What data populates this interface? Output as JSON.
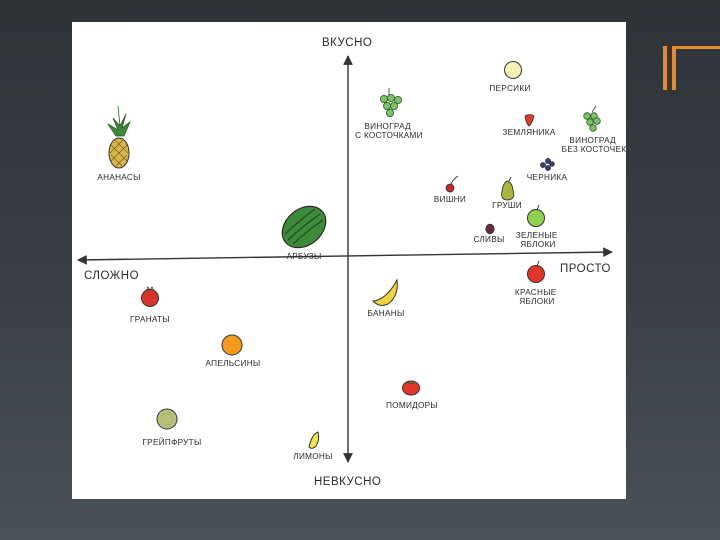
{
  "axis": {
    "top": "ВКУСНО",
    "bottom": "НЕВКУСНО",
    "left": "СЛОЖНО",
    "right": "ПРОСТО"
  },
  "items": [
    {
      "key": "peaches",
      "lines": [
        "ПЕРСИКИ"
      ]
    },
    {
      "key": "grapes-seed",
      "lines": [
        "ВИНОГРАД",
        "С КОСТОЧКАМИ"
      ]
    },
    {
      "key": "strawberry",
      "lines": [
        "ЗЕМЛЯНИКА"
      ]
    },
    {
      "key": "grapes-seedless",
      "lines": [
        "ВИНОГРАД",
        "БЕЗ КОСТОЧЕК"
      ]
    },
    {
      "key": "pineapple",
      "lines": [
        "АНАНАСЫ"
      ]
    },
    {
      "key": "blueberry",
      "lines": [
        "ЧЕРНИКА"
      ]
    },
    {
      "key": "cherries",
      "lines": [
        "ВИШНИ"
      ]
    },
    {
      "key": "pears",
      "lines": [
        "ГРУШИ"
      ]
    },
    {
      "key": "green-apples",
      "lines": [
        "ЗЕЛЕНЫЕ",
        "ЯБЛОКИ"
      ]
    },
    {
      "key": "plums",
      "lines": [
        "СЛИВЫ"
      ]
    },
    {
      "key": "watermelon",
      "lines": [
        "АРБУЗЫ"
      ]
    },
    {
      "key": "red-apples",
      "lines": [
        "КРАСНЫЕ",
        "ЯБЛОКИ"
      ]
    },
    {
      "key": "pomegranates",
      "lines": [
        "ГРАНАТЫ"
      ]
    },
    {
      "key": "bananas",
      "lines": [
        "БАНАНЫ"
      ]
    },
    {
      "key": "oranges",
      "lines": [
        "АПЕЛЬСИНЫ"
      ]
    },
    {
      "key": "tomatoes",
      "lines": [
        "ПОМИДОРЫ"
      ]
    },
    {
      "key": "grapefruits",
      "lines": [
        "ГРЕЙПФРУТЫ"
      ]
    },
    {
      "key": "lemons",
      "lines": [
        "ЛИМОНЫ"
      ]
    }
  ],
  "colors": {
    "accent": "#e8892a",
    "axis": "#333333",
    "peach": "#f6efb8",
    "grape_green": "#7cc46a",
    "strawberry": "#e03a2e",
    "pineapple": "#d7b54a",
    "blueberry": "#3b3f78",
    "cherry": "#c8242a",
    "pear": "#a8b63c",
    "green_apple": "#8fd14f",
    "plum": "#6a2a3e",
    "watermelon": "#3f8a3a",
    "red_apple": "#e23428",
    "pomegranate": "#d8342c",
    "banana": "#f3d23c",
    "orange": "#f59a1e",
    "tomato": "#e5362b",
    "grapefruit": "#b7c07a",
    "lemon": "#f2e24a"
  }
}
